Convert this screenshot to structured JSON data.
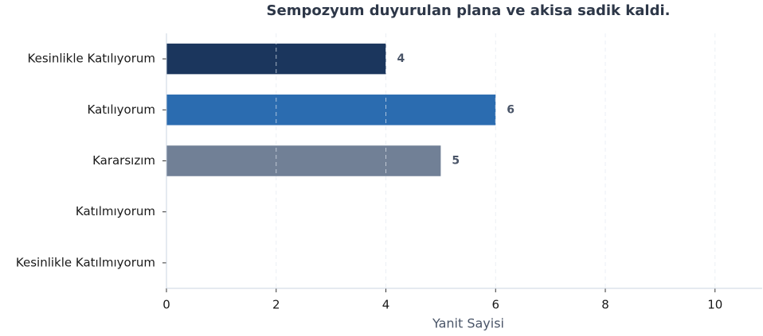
{
  "chart_data": {
    "type": "barh",
    "title": "Sempozyum duyurulan plana ve akisa sadik kaldi.",
    "xlabel": "Yanit Sayisi",
    "categories": [
      "Kesinlikle Katılıyorum",
      "Katılıyorum",
      "Kararsızım",
      "Katılmıyorum",
      "Kesinlikle Katılmıyorum"
    ],
    "values": [
      4,
      6,
      5,
      0,
      0
    ],
    "colors": [
      "#1b365d",
      "#2b6cb0",
      "#718096",
      "#a0aec0",
      "#cbd5e0"
    ],
    "xlim": [
      0,
      10.86
    ],
    "xticks": [
      0,
      2,
      4,
      6,
      8,
      10
    ],
    "grid": true
  }
}
